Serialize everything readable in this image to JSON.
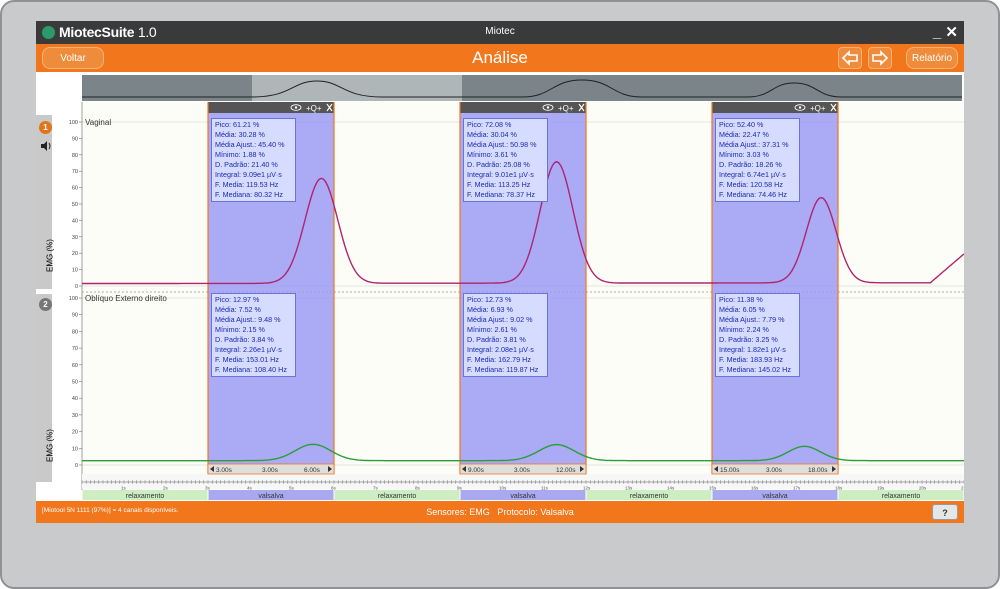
{
  "window": {
    "app_name": "MiotecSuite",
    "app_version": "1.0",
    "title": "Miotec",
    "controls": "_ ✕"
  },
  "header": {
    "back_label": "Voltar",
    "title": "Análise",
    "report_label": "Relatório"
  },
  "channels": [
    {
      "number": "1",
      "name": "Vaginal",
      "ylabel": "EMG (%)",
      "color": "#b0246e",
      "badge_color": "#e0761c"
    },
    {
      "number": "2",
      "name": "Oblíquo Externo direito",
      "ylabel": "EMG (%)",
      "color": "#2c9d3a",
      "badge_color": "#777777"
    }
  ],
  "y_ticks": [
    "100",
    "90",
    "80",
    "70",
    "60",
    "50",
    "40",
    "30",
    "20",
    "10",
    "0"
  ],
  "segments": [
    {
      "range": {
        "start": "3.00s",
        "duration": "3.00s",
        "end": "6.00s"
      },
      "ch1": {
        "pico": "Pico: 61.21 %",
        "media": "Média: 30.28 %",
        "media_ajust": "Média Ajust.: 45.40 %",
        "minimo": "Mínimo: 1.88 %",
        "dpadrao": "D. Padrão: 21.40 %",
        "integral": "Integral: 9.09e1 µV·s",
        "fmedia": "F. Media: 119.53 Hz",
        "fmediana": "F. Mediana: 80.32 Hz"
      },
      "ch2": {
        "pico": "Pico: 12.97 %",
        "media": "Média: 7.52 %",
        "media_ajust": "Média Ajust.: 9.48 %",
        "minimo": "Mínimo: 2.15 %",
        "dpadrao": "D. Padrão: 3.84 %",
        "integral": "Integral: 2.26e1 µV·s",
        "fmedia": "F. Media: 153.01 Hz",
        "fmediana": "F. Mediana: 108.40 Hz"
      }
    },
    {
      "range": {
        "start": "9.00s",
        "duration": "3.00s",
        "end": "12.00s"
      },
      "ch1": {
        "pico": "Pico: 72.08 %",
        "media": "Média: 30.04 %",
        "media_ajust": "Média Ajust.: 50.98 %",
        "minimo": "Mínimo: 3.61 %",
        "dpadrao": "D. Padrão: 25.08 %",
        "integral": "Integral: 9.01e1 µV·s",
        "fmedia": "F. Media: 113.25 Hz",
        "fmediana": "F. Mediana: 78.37 Hz"
      },
      "ch2": {
        "pico": "Pico: 12.73 %",
        "media": "Média: 6.93 %",
        "media_ajust": "Média Ajust.: 9.02 %",
        "minimo": "Mínimo: 2.61 %",
        "dpadrao": "D. Padrão: 3.81 %",
        "integral": "Integral: 2.08e1 µV·s",
        "fmedia": "F. Media: 162.79 Hz",
        "fmediana": "F. Mediana: 119.87 Hz"
      }
    },
    {
      "range": {
        "start": "15.00s",
        "duration": "3.00s",
        "end": "18.00s"
      },
      "ch1": {
        "pico": "Pico: 52.40 %",
        "media": "Média: 22.47 %",
        "media_ajust": "Média Ajust.: 37.31 %",
        "minimo": "Mínimo: 3.03 %",
        "dpadrao": "D. Padrão: 18.26 %",
        "integral": "Integral: 6.74e1 µV·s",
        "fmedia": "F. Media: 120.58 Hz",
        "fmediana": "F. Mediana: 74.46 Hz"
      },
      "ch2": {
        "pico": "Pico: 11.38 %",
        "media": "Média: 6.05 %",
        "media_ajust": "Média Ajust.: 7.79 %",
        "minimo": "Mínimo: 2.24 %",
        "dpadrao": "D. Padrão: 3.25 %",
        "integral": "Integral: 1.82e1 µV·s",
        "fmedia": "F. Media: 183.93 Hz",
        "fmediana": "F. Mediana: 145.02 Hz"
      }
    }
  ],
  "time_ticks": [
    "1s",
    "2s",
    "3s",
    "4s",
    "5s",
    "6s",
    "7s",
    "8s",
    "9s",
    "10s",
    "11s",
    "12s",
    "13s",
    "14s",
    "15s",
    "16s",
    "17s",
    "18s",
    "19s",
    "20s",
    "21s"
  ],
  "protocol_phases": [
    "relaxamento",
    "valsalva",
    "relaxamento",
    "valsalva",
    "relaxamento",
    "valsalva",
    "relaxamento"
  ],
  "status": {
    "left": "[Miotool 5N 1111 (97%)] = 4 canais disponíveis.",
    "sensors": "Sensores: EMG",
    "protocol": "Protocolo: Valsalva",
    "help": "?"
  },
  "colors": {
    "accent": "#f2761c",
    "selection": "#9b9bf5",
    "relax": "#cdeec3",
    "valsalva": "#a9a9f2"
  }
}
